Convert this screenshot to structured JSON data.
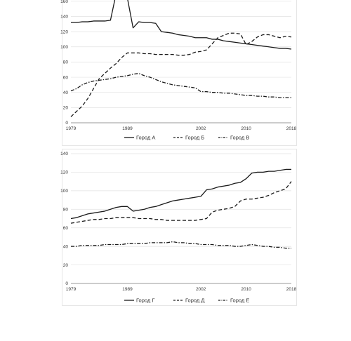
{
  "chart_data": [
    {
      "type": "line",
      "ylim": [
        0,
        170
      ],
      "yticks": [
        0,
        20,
        40,
        60,
        80,
        100,
        120,
        140,
        160
      ],
      "xlim": [
        1979,
        2018
      ],
      "xticks": [
        1979,
        1989,
        2002,
        2010,
        2018
      ],
      "grid": true,
      "legend_position": "bottom",
      "series": [
        {
          "name": "Город А",
          "style": "solid",
          "points": [
            [
              1979,
              132
            ],
            [
              1980,
              132
            ],
            [
              1981,
              133
            ],
            [
              1982,
              133
            ],
            [
              1983,
              134
            ],
            [
              1984,
              134
            ],
            [
              1985,
              134
            ],
            [
              1986,
              135
            ],
            [
              1987,
              170
            ],
            [
              1988,
              170
            ],
            [
              1989,
              164
            ],
            [
              1990,
              125
            ],
            [
              1991,
              133
            ],
            [
              1992,
              132
            ],
            [
              1993,
              132
            ],
            [
              1994,
              131
            ],
            [
              1995,
              120
            ],
            [
              1996,
              119
            ],
            [
              1997,
              118
            ],
            [
              1998,
              116
            ],
            [
              1999,
              115
            ],
            [
              2000,
              114
            ],
            [
              2001,
              112
            ],
            [
              2002,
              112
            ],
            [
              2003,
              112
            ],
            [
              2004,
              110
            ],
            [
              2005,
              110
            ],
            [
              2006,
              108
            ],
            [
              2007,
              107
            ],
            [
              2008,
              106
            ],
            [
              2009,
              105
            ],
            [
              2010,
              104
            ],
            [
              2011,
              103
            ],
            [
              2012,
              102
            ],
            [
              2013,
              101
            ],
            [
              2014,
              100
            ],
            [
              2015,
              99
            ],
            [
              2016,
              98
            ],
            [
              2017,
              98
            ],
            [
              2018,
              97
            ]
          ]
        },
        {
          "name": "Город Б",
          "style": "dashed",
          "points": [
            [
              1979,
              8
            ],
            [
              1980,
              15
            ],
            [
              1981,
              22
            ],
            [
              1982,
              32
            ],
            [
              1983,
              45
            ],
            [
              1984,
              58
            ],
            [
              1985,
              65
            ],
            [
              1986,
              72
            ],
            [
              1987,
              78
            ],
            [
              1988,
              86
            ],
            [
              1989,
              92
            ],
            [
              1990,
              92
            ],
            [
              1991,
              92
            ],
            [
              1992,
              91
            ],
            [
              1993,
              91
            ],
            [
              1994,
              90
            ],
            [
              1995,
              90
            ],
            [
              1996,
              90
            ],
            [
              1997,
              90
            ],
            [
              1998,
              89
            ],
            [
              1999,
              89
            ],
            [
              2000,
              90
            ],
            [
              2001,
              93
            ],
            [
              2002,
              94
            ],
            [
              2003,
              96
            ],
            [
              2004,
              104
            ],
            [
              2005,
              112
            ],
            [
              2006,
              115
            ],
            [
              2007,
              118
            ],
            [
              2008,
              118
            ],
            [
              2009,
              117
            ],
            [
              2010,
              103
            ],
            [
              2011,
              107
            ],
            [
              2012,
              113
            ],
            [
              2013,
              116
            ],
            [
              2014,
              116
            ],
            [
              2015,
              114
            ],
            [
              2016,
              112
            ],
            [
              2017,
              114
            ],
            [
              2018,
              113
            ]
          ]
        },
        {
          "name": "Город В",
          "style": "dash-dot",
          "points": [
            [
              1979,
              42
            ],
            [
              1980,
              45
            ],
            [
              1981,
              50
            ],
            [
              1982,
              53
            ],
            [
              1983,
              55
            ],
            [
              1984,
              56
            ],
            [
              1985,
              57
            ],
            [
              1986,
              58
            ],
            [
              1987,
              60
            ],
            [
              1988,
              61
            ],
            [
              1989,
              62
            ],
            [
              1990,
              64
            ],
            [
              1991,
              65
            ],
            [
              1992,
              62
            ],
            [
              1993,
              60
            ],
            [
              1994,
              57
            ],
            [
              1995,
              54
            ],
            [
              1996,
              52
            ],
            [
              1997,
              50
            ],
            [
              1998,
              49
            ],
            [
              1999,
              48
            ],
            [
              2000,
              47
            ],
            [
              2001,
              46
            ],
            [
              2002,
              41
            ],
            [
              2003,
              41
            ],
            [
              2004,
              40
            ],
            [
              2005,
              40
            ],
            [
              2006,
              39
            ],
            [
              2007,
              39
            ],
            [
              2008,
              38
            ],
            [
              2009,
              37
            ],
            [
              2010,
              36
            ],
            [
              2011,
              36
            ],
            [
              2012,
              35
            ],
            [
              2013,
              35
            ],
            [
              2014,
              34
            ],
            [
              2015,
              34
            ],
            [
              2016,
              33
            ],
            [
              2017,
              33
            ],
            [
              2018,
              33
            ]
          ]
        }
      ]
    },
    {
      "type": "line",
      "ylim": [
        0,
        140
      ],
      "yticks": [
        0,
        20,
        40,
        60,
        80,
        100,
        120,
        140
      ],
      "xlim": [
        1979,
        2018
      ],
      "xticks": [
        1979,
        1989,
        2002,
        2010,
        2018
      ],
      "grid": true,
      "legend_position": "bottom",
      "series": [
        {
          "name": "Город Г",
          "style": "solid",
          "points": [
            [
              1979,
              70
            ],
            [
              1980,
              71
            ],
            [
              1981,
              73
            ],
            [
              1982,
              75
            ],
            [
              1983,
              76
            ],
            [
              1984,
              77
            ],
            [
              1985,
              78
            ],
            [
              1986,
              80
            ],
            [
              1987,
              82
            ],
            [
              1988,
              83
            ],
            [
              1989,
              83
            ],
            [
              1990,
              78
            ],
            [
              1991,
              79
            ],
            [
              1992,
              80
            ],
            [
              1993,
              82
            ],
            [
              1994,
              83
            ],
            [
              1995,
              85
            ],
            [
              1996,
              87
            ],
            [
              1997,
              89
            ],
            [
              1998,
              90
            ],
            [
              1999,
              91
            ],
            [
              2000,
              92
            ],
            [
              2001,
              93
            ],
            [
              2002,
              94
            ],
            [
              2003,
              101
            ],
            [
              2004,
              102
            ],
            [
              2005,
              104
            ],
            [
              2006,
              105
            ],
            [
              2007,
              106
            ],
            [
              2008,
              108
            ],
            [
              2009,
              109
            ],
            [
              2010,
              113
            ],
            [
              2011,
              119
            ],
            [
              2012,
              120
            ],
            [
              2013,
              120
            ],
            [
              2014,
              121
            ],
            [
              2015,
              121
            ],
            [
              2016,
              122
            ],
            [
              2017,
              123
            ],
            [
              2018,
              123
            ]
          ]
        },
        {
          "name": "Город Д",
          "style": "dashed",
          "points": [
            [
              1979,
              65
            ],
            [
              1980,
              66
            ],
            [
              1981,
              67
            ],
            [
              1982,
              68
            ],
            [
              1983,
              69
            ],
            [
              1984,
              69
            ],
            [
              1985,
              70
            ],
            [
              1986,
              70
            ],
            [
              1987,
              71
            ],
            [
              1988,
              71
            ],
            [
              1989,
              71
            ],
            [
              1990,
              71
            ],
            [
              1991,
              70
            ],
            [
              1992,
              70
            ],
            [
              1993,
              70
            ],
            [
              1994,
              69
            ],
            [
              1995,
              69
            ],
            [
              1996,
              68
            ],
            [
              1997,
              68
            ],
            [
              1998,
              68
            ],
            [
              1999,
              68
            ],
            [
              2000,
              68
            ],
            [
              2001,
              68
            ],
            [
              2002,
              69
            ],
            [
              2003,
              70
            ],
            [
              2004,
              77
            ],
            [
              2005,
              79
            ],
            [
              2006,
              80
            ],
            [
              2007,
              81
            ],
            [
              2008,
              83
            ],
            [
              2009,
              89
            ],
            [
              2010,
              91
            ],
            [
              2011,
              91
            ],
            [
              2012,
              92
            ],
            [
              2013,
              93
            ],
            [
              2014,
              95
            ],
            [
              2015,
              98
            ],
            [
              2016,
              100
            ],
            [
              2017,
              102
            ],
            [
              2018,
              110
            ]
          ]
        },
        {
          "name": "Город Е",
          "style": "dash-dot",
          "points": [
            [
              1979,
              40
            ],
            [
              1980,
              40
            ],
            [
              1981,
              41
            ],
            [
              1982,
              41
            ],
            [
              1983,
              41
            ],
            [
              1984,
              41
            ],
            [
              1985,
              42
            ],
            [
              1986,
              42
            ],
            [
              1987,
              42
            ],
            [
              1988,
              42
            ],
            [
              1989,
              43
            ],
            [
              1990,
              43
            ],
            [
              1991,
              43
            ],
            [
              1992,
              43
            ],
            [
              1993,
              44
            ],
            [
              1994,
              44
            ],
            [
              1995,
              44
            ],
            [
              1996,
              44
            ],
            [
              1997,
              45
            ],
            [
              1998,
              44
            ],
            [
              1999,
              44
            ],
            [
              2000,
              43
            ],
            [
              2001,
              43
            ],
            [
              2002,
              42
            ],
            [
              2003,
              42
            ],
            [
              2004,
              42
            ],
            [
              2005,
              41
            ],
            [
              2006,
              41
            ],
            [
              2007,
              41
            ],
            [
              2008,
              40
            ],
            [
              2009,
              40
            ],
            [
              2010,
              41
            ],
            [
              2011,
              42
            ],
            [
              2012,
              41
            ],
            [
              2013,
              40
            ],
            [
              2014,
              40
            ],
            [
              2015,
              39
            ],
            [
              2016,
              39
            ],
            [
              2017,
              38
            ],
            [
              2018,
              38
            ]
          ]
        }
      ]
    }
  ]
}
